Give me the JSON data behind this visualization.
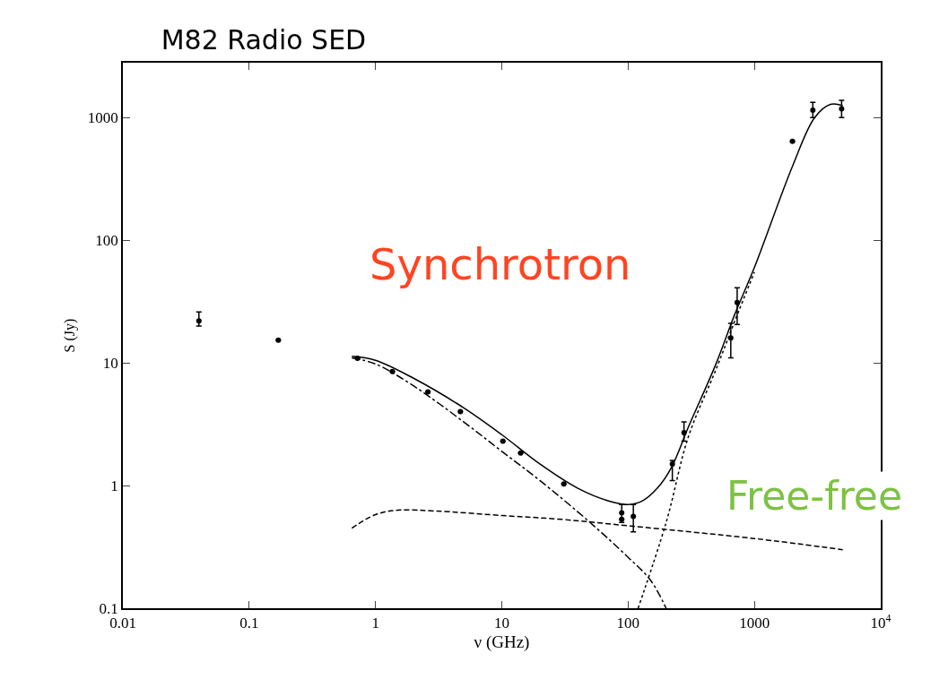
{
  "chart_data": {
    "type": "scatter",
    "title": "M82 Radio SED",
    "xlabel": "ν (GHz)",
    "ylabel": "S (Jy)",
    "log": "xy",
    "xlim": [
      0.01,
      10000
    ],
    "ylim": [
      0.1,
      2800
    ],
    "xticks": [
      0.01,
      0.1,
      1,
      10,
      100,
      1000,
      {
        "value": 10000,
        "label": "10$^{4}$"
      }
    ],
    "yticks": [
      0.1,
      1,
      10,
      100,
      1000
    ],
    "series": [
      {
        "type": "line",
        "color": "#000000",
        "line_style": "solid",
        "x": [
          0.65,
          1,
          2,
          5,
          10,
          20,
          40,
          70,
          100,
          130,
          170,
          220,
          300,
          500,
          700,
          1000,
          2000,
          3000,
          4000,
          5000
        ],
        "values": [
          11.3,
          10.5,
          7.5,
          4.3,
          2.6,
          1.5,
          0.95,
          0.75,
          0.7,
          0.75,
          0.95,
          1.4,
          3,
          10,
          25,
          60,
          400,
          1000,
          1280,
          1250
        ]
      },
      {
        "type": "line",
        "color": "#000000",
        "line_style": "dashdot",
        "x": [
          0.65,
          1,
          2,
          5,
          10,
          20,
          50,
          100,
          150,
          200
        ],
        "values": [
          11,
          9.8,
          6.5,
          3.3,
          1.9,
          1.1,
          0.5,
          0.26,
          0.17,
          0.1
        ]
      },
      {
        "type": "line",
        "color": "#000000",
        "line_style": "dashed",
        "x": [
          0.65,
          1,
          1.5,
          3,
          10,
          30,
          100,
          1000,
          5000
        ],
        "values": [
          0.45,
          0.58,
          0.63,
          0.62,
          0.57,
          0.53,
          0.47,
          0.37,
          0.3
        ]
      },
      {
        "type": "line",
        "color": "#000000",
        "line_style": "dotted",
        "x": [
          120,
          200,
          300,
          500,
          700,
          1000
        ],
        "values": [
          0.1,
          0.5,
          2.5,
          9,
          22,
          55
        ]
      },
      {
        "color": "#000000",
        "marker": "circle",
        "x": [
          0.04,
          0.17,
          0.72,
          1.36,
          2.6,
          4.7,
          10.2,
          14.1,
          31,
          89,
          89,
          110,
          224,
          277,
          650,
          730,
          2000,
          2900,
          4900
        ],
        "values": [
          22,
          15.3,
          10.9,
          8.5,
          5.8,
          4.0,
          2.3,
          1.84,
          1.03,
          0.6,
          0.53,
          0.56,
          1.5,
          2.7,
          16,
          31,
          640,
          1150,
          1180
        ],
        "errors": [
          [
            20,
            26
          ],
          null,
          null,
          null,
          null,
          null,
          null,
          null,
          null,
          [
            0.5,
            0.7
          ],
          null,
          [
            0.42,
            0.7
          ],
          [
            1.1,
            1.6
          ],
          [
            2.3,
            3.3
          ],
          [
            11,
            21
          ],
          [
            20.6,
            41
          ],
          null,
          [
            1000,
            1330
          ],
          [
            1000,
            1380
          ]
        ]
      }
    ],
    "annotations": [
      "Synchrotron",
      "Free-free"
    ]
  }
}
